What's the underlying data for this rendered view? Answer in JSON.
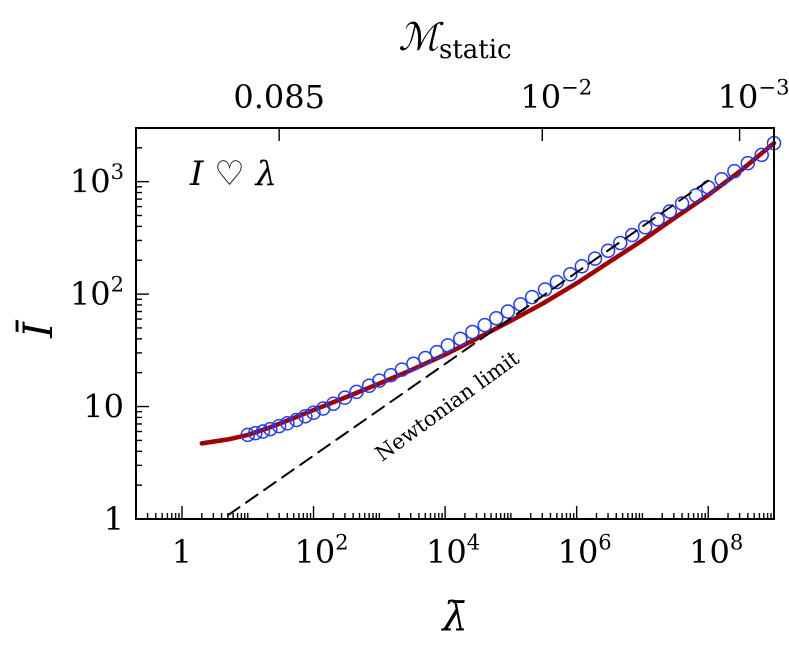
{
  "chart_data": {
    "type": "line",
    "xscale": "log",
    "yscale": "log",
    "xlim": [
      0.2,
      1000000000
    ],
    "ylim": [
      1,
      3000
    ],
    "xlabel": "λ̄",
    "ylabel": "Ī",
    "top_axis_label": "ℳ",
    "top_axis_label_sub": "static",
    "x_ticks": [
      {
        "value": 1,
        "label": "1",
        "base": "",
        "exp": ""
      },
      {
        "value": 100,
        "label": "",
        "base": "10",
        "exp": "2"
      },
      {
        "value": 10000,
        "label": "",
        "base": "10",
        "exp": "4"
      },
      {
        "value": 1000000,
        "label": "",
        "base": "10",
        "exp": "6"
      },
      {
        "value": 100000000,
        "label": "",
        "base": "10",
        "exp": "8"
      }
    ],
    "y_ticks": [
      {
        "value": 1,
        "label": "1",
        "base": "",
        "exp": ""
      },
      {
        "value": 10,
        "label": "10",
        "base": "",
        "exp": ""
      },
      {
        "value": 100,
        "label": "",
        "base": "10",
        "exp": "2"
      },
      {
        "value": 1000,
        "label": "",
        "base": "10",
        "exp": "3"
      }
    ],
    "top_ticks": [
      {
        "lambda": 30,
        "label": "0.085",
        "base": "",
        "exp": ""
      },
      {
        "lambda": 300000,
        "label": "",
        "base": "10",
        "exp": "−2"
      },
      {
        "lambda": 300000000,
        "label": "",
        "base": "10",
        "exp": "−3"
      }
    ],
    "annotations": [
      {
        "text": "I ♡ λ"
      },
      {
        "text": "Newtonian limit"
      }
    ],
    "series": [
      {
        "style": "solid",
        "color": "#a00000",
        "x": [
          2,
          5,
          10,
          20,
          50,
          100,
          300,
          1000,
          3000,
          10000,
          30000,
          100000,
          300000,
          1000000,
          3000000,
          10000000,
          30000000,
          100000000,
          300000000,
          1000000000
        ],
        "y": [
          4.7,
          5.1,
          5.6,
          6.4,
          7.9,
          9.3,
          12.0,
          16.0,
          21.0,
          29.0,
          40.0,
          58.0,
          82.0,
          125,
          190,
          300,
          470,
          760,
          1230,
          2200
        ]
      },
      {
        "style": "markers",
        "color": "#1f3cff",
        "x": [
          10,
          13,
          17,
          22,
          30,
          40,
          55,
          75,
          100,
          140,
          200,
          300,
          450,
          700,
          1000,
          1500,
          2200,
          3300,
          5000,
          7500,
          11000,
          17000,
          26000,
          40000,
          60000,
          90000,
          140000,
          210000,
          330000,
          500000,
          800000,
          1200000,
          1900000,
          3000000,
          4600000,
          7000000,
          11000000,
          17000000,
          26000000,
          40000000,
          65000000,
          100000000,
          160000000,
          250000000,
          400000000,
          650000000,
          1000000000
        ],
        "y": [
          5.6,
          5.8,
          6.0,
          6.3,
          6.7,
          7.1,
          7.6,
          8.2,
          8.8,
          9.6,
          10.6,
          12.0,
          13.5,
          15.3,
          17.0,
          19.0,
          21.3,
          24.0,
          27.0,
          30.5,
          35.0,
          40.0,
          46.0,
          53.0,
          61.0,
          70.0,
          81.0,
          94.0,
          110,
          128,
          150,
          177,
          207,
          243,
          285,
          335,
          393,
          462,
          543,
          640,
          755,
          890,
          1050,
          1240,
          1460,
          1730,
          2200
        ]
      },
      {
        "style": "dashed",
        "color": "#000000",
        "x": [
          5,
          100000000
        ],
        "y": [
          1.08,
          1020
        ]
      }
    ]
  }
}
